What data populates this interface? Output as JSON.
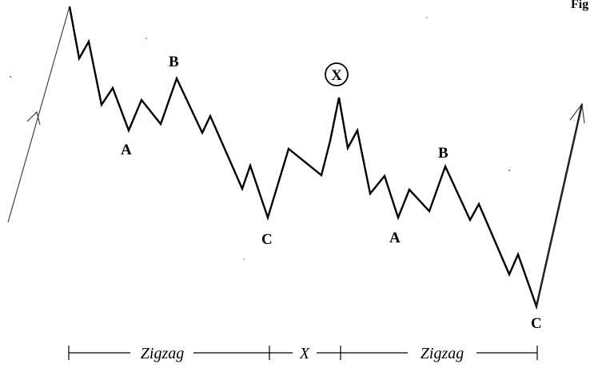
{
  "corner_fragment": "Fig",
  "x_circle": "X",
  "first_zigzag": {
    "a": "A",
    "b": "B",
    "c": "C"
  },
  "second_zigzag": {
    "a": "A",
    "b": "B",
    "c": "C"
  },
  "spans": [
    {
      "label": "Zigzag"
    },
    {
      "label": "X"
    },
    {
      "label": "Zigzag"
    }
  ]
}
